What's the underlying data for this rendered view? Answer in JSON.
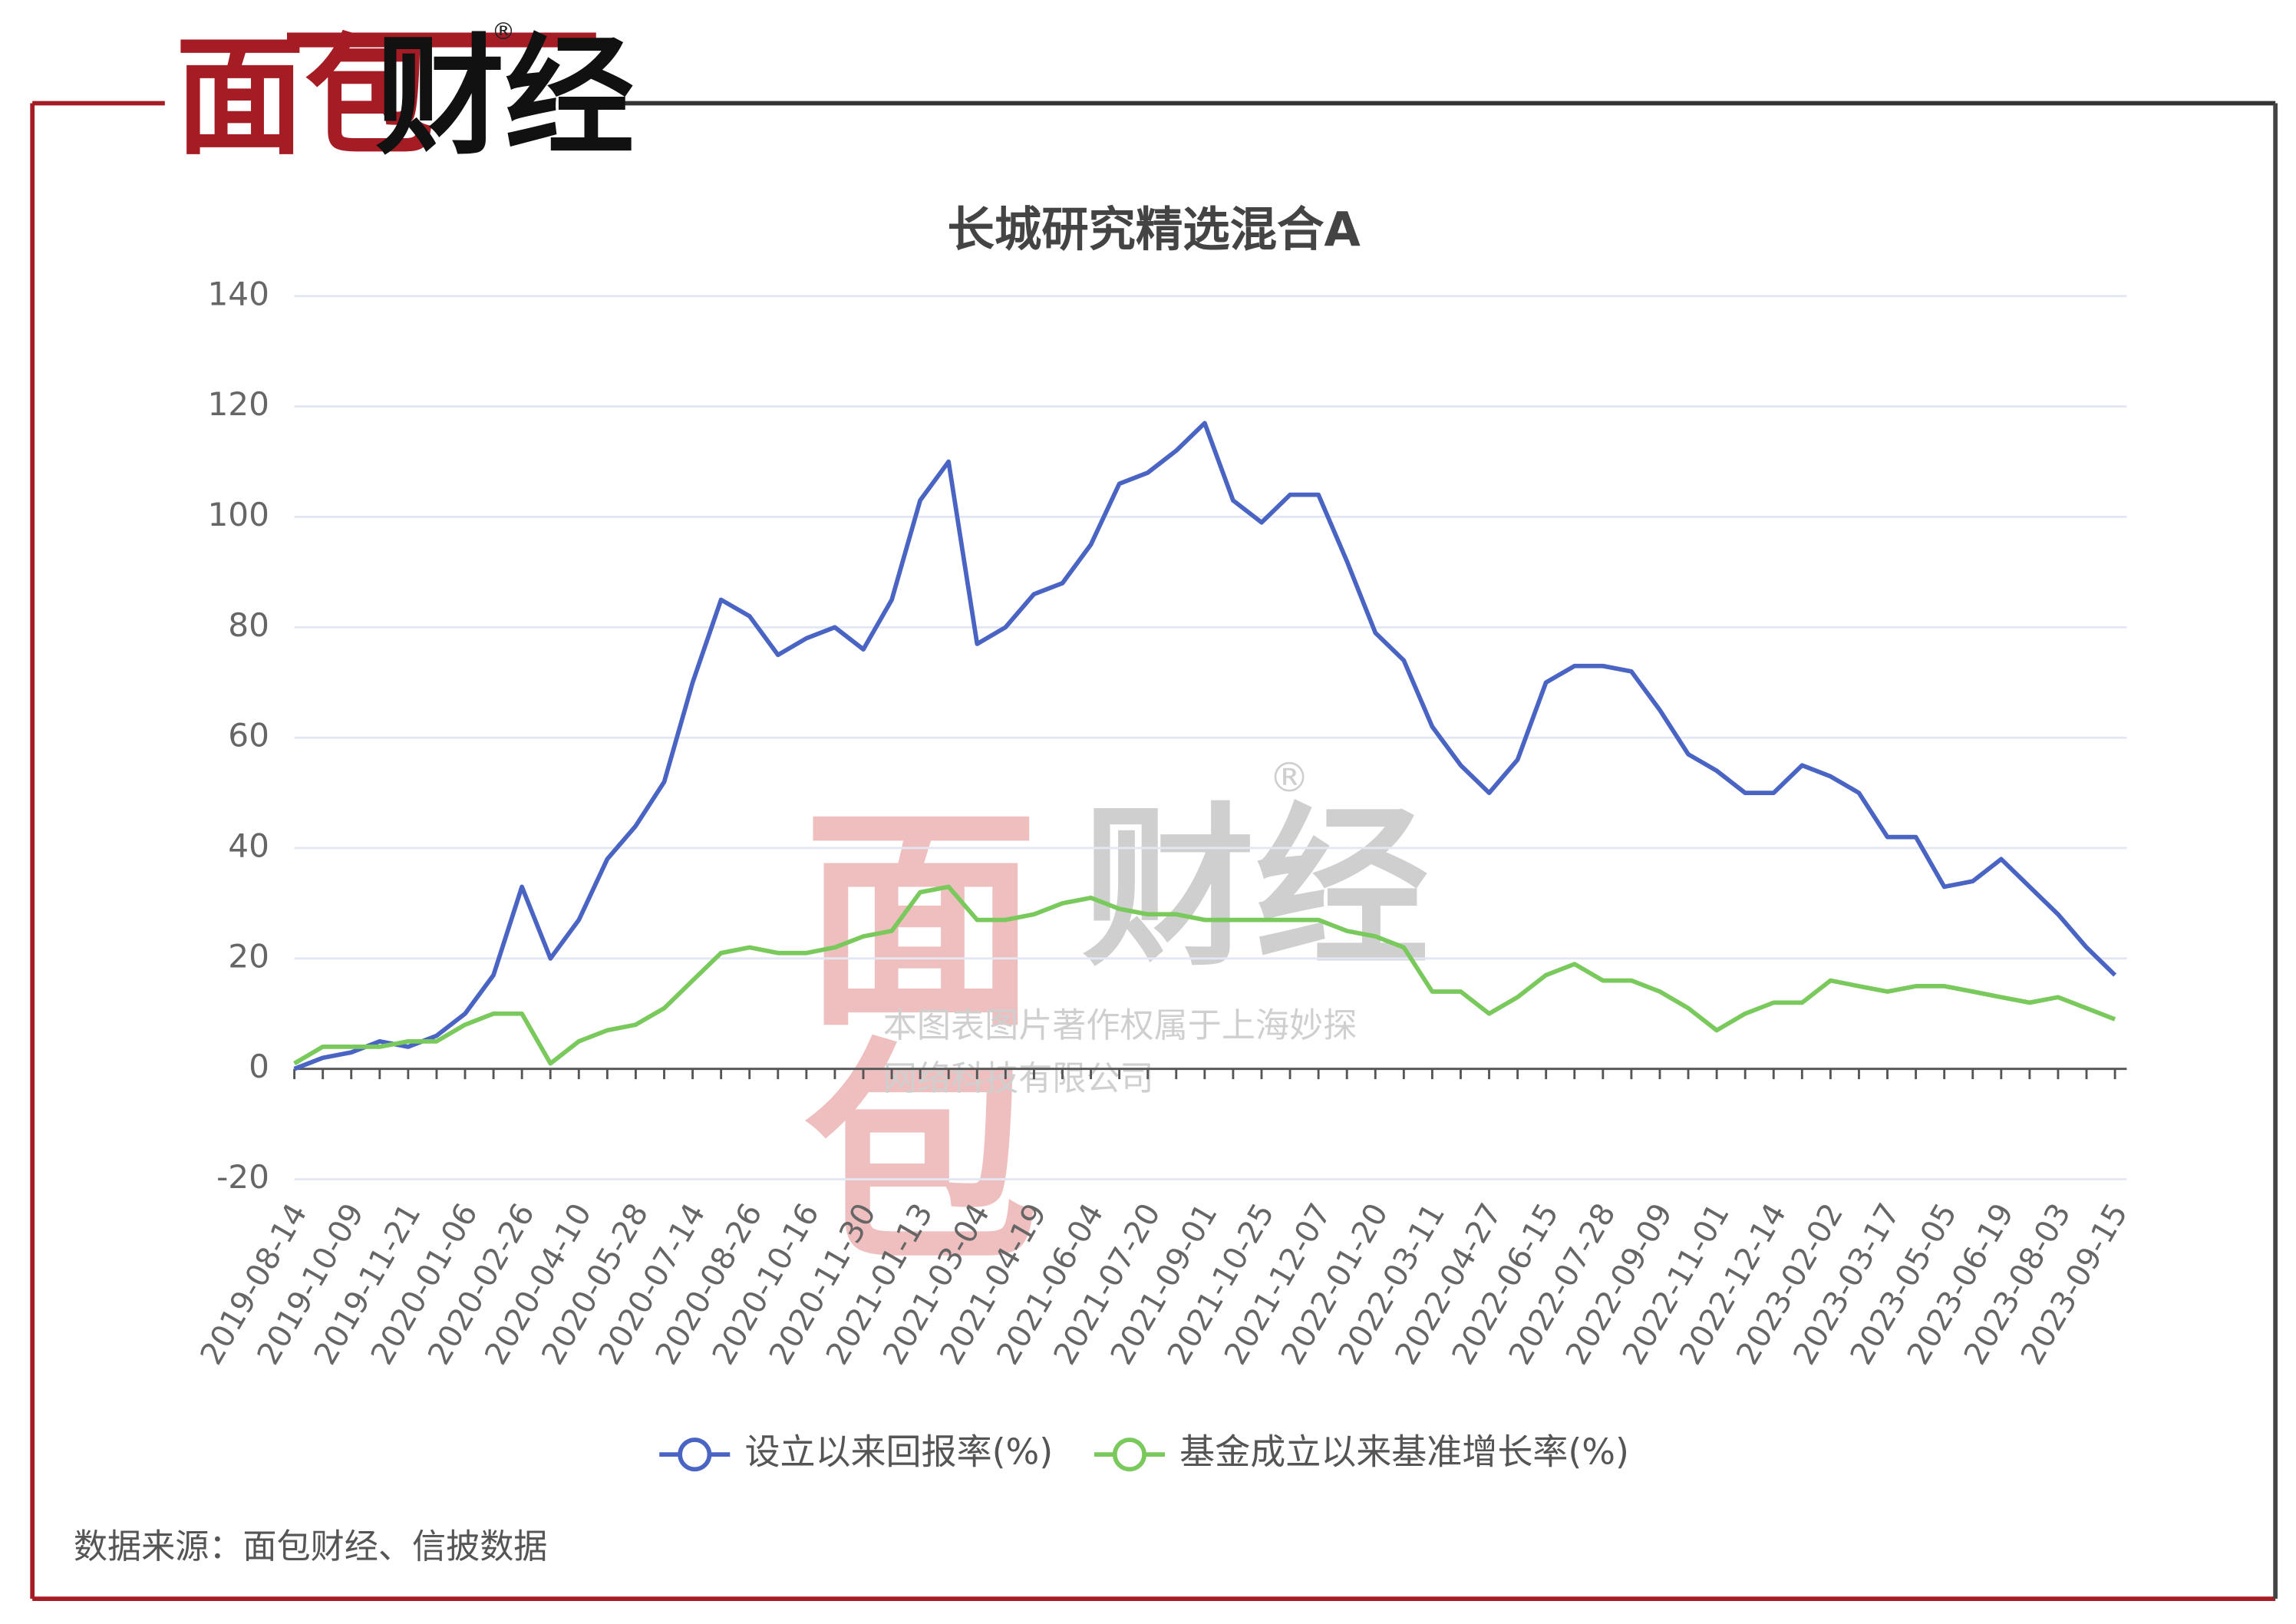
{
  "brand_red": "面包",
  "brand_black": "财经",
  "watermark_lines": [
    "本图表图片著作权属于上海妙探",
    "网络科技有限公司"
  ],
  "source": "数据来源：面包财经、信披数据",
  "chart_data": {
    "type": "line",
    "title": "长城研究精选混合A",
    "categories": [
      "2019-08-14",
      null,
      "2019-10-09",
      null,
      "2019-11-21",
      null,
      "2020-01-06",
      null,
      "2020-02-26",
      null,
      "2020-04-10",
      null,
      "2020-05-28",
      null,
      "2020-07-14",
      null,
      "2020-08-26",
      null,
      "2020-10-16",
      null,
      "2020-11-30",
      null,
      "2021-01-13",
      null,
      "2021-03-04",
      null,
      "2021-04-19",
      null,
      "2021-06-04",
      null,
      "2021-07-20",
      null,
      "2021-09-01",
      null,
      "2021-10-25",
      null,
      "2021-12-07",
      null,
      "2022-01-20",
      null,
      "2022-03-11",
      null,
      "2022-04-27",
      null,
      "2022-06-15",
      null,
      "2022-07-28",
      null,
      "2022-09-09",
      null,
      "2022-11-01",
      null,
      "2022-12-14",
      null,
      "2023-02-02",
      null,
      "2023-03-17",
      null,
      "2023-05-05",
      null,
      "2023-06-19",
      null,
      "2023-08-03",
      null,
      "2023-09-15"
    ],
    "series": [
      {
        "name": "设立以来回报率(%)",
        "color": "#4a64c4",
        "values": [
          0,
          2,
          3,
          5,
          4,
          6,
          10,
          17,
          33,
          20,
          27,
          38,
          44,
          52,
          70,
          85,
          82,
          75,
          78,
          80,
          76,
          85,
          103,
          110,
          77,
          80,
          86,
          88,
          95,
          106,
          108,
          112,
          117,
          103,
          99,
          104,
          104,
          92,
          79,
          74,
          62,
          55,
          50,
          56,
          70,
          73,
          73,
          72,
          65,
          57,
          54,
          50,
          50,
          55,
          53,
          50,
          42,
          42,
          33,
          34,
          38,
          33,
          28,
          22,
          17
        ]
      },
      {
        "name": "基金成立以来基准增长率(%)",
        "color": "#7ac95c",
        "values": [
          1,
          4,
          4,
          4,
          5,
          5,
          8,
          10,
          10,
          1,
          5,
          7,
          8,
          11,
          16,
          21,
          22,
          21,
          21,
          22,
          24,
          25,
          32,
          33,
          27,
          27,
          28,
          30,
          31,
          29,
          28,
          28,
          27,
          27,
          27,
          27,
          27,
          25,
          24,
          22,
          14,
          14,
          10,
          13,
          17,
          19,
          16,
          16,
          14,
          11,
          7,
          10,
          12,
          12,
          16,
          15,
          14,
          15,
          15,
          14,
          13,
          12,
          13,
          11,
          9
        ]
      }
    ],
    "ylim": [
      -20,
      140
    ],
    "yticks": [
      -20,
      0,
      20,
      40,
      60,
      80,
      100,
      120,
      140
    ],
    "grid": true,
    "legend": "bottom"
  }
}
